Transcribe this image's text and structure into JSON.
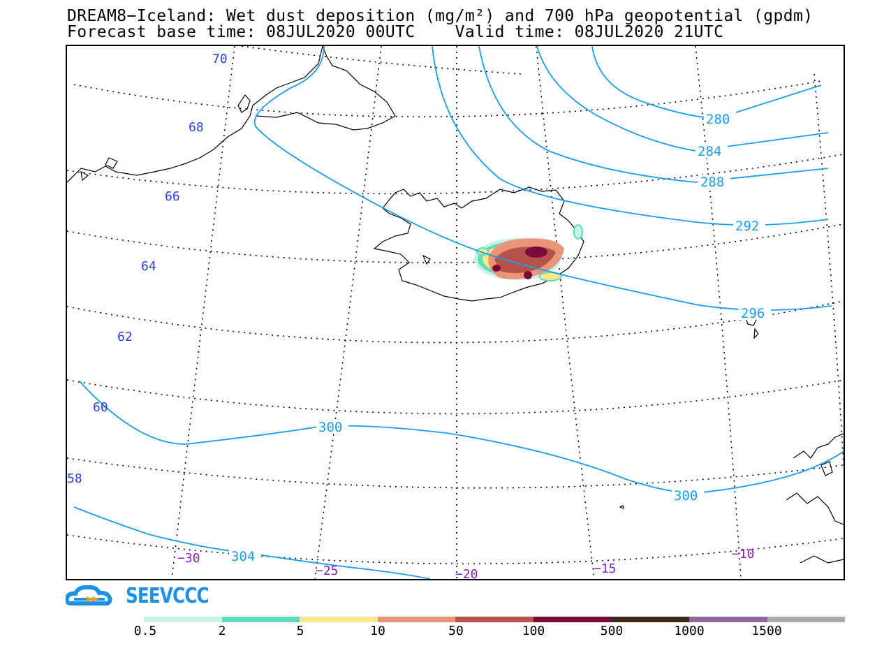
{
  "title": {
    "line1": "DREAM8−Iceland: Wet dust deposition (mg/m²) and 700 hPa geopotential (gpdm)",
    "line2": "Forecast base time: 08JUL2020 00UTC    Valid time: 08JUL2020 21UTC"
  },
  "map": {
    "latitude_labels": [
      "70",
      "68",
      "66",
      "64",
      "62",
      "60",
      "58"
    ],
    "longitude_labels": [
      "−30",
      "−25",
      "−20",
      "−15",
      "−10"
    ],
    "latitude_label_color": "#2a3fe0",
    "longitude_label_color": "#8a1ec8",
    "contour_color": "#1a9cf0",
    "geopotential_contours": [
      {
        "value": "280",
        "label": "280"
      },
      {
        "value": "284",
        "label": "284"
      },
      {
        "value": "288",
        "label": "288"
      },
      {
        "value": "292",
        "label": "292"
      },
      {
        "value": "296",
        "label": "296"
      },
      {
        "value": "300",
        "label": "300"
      },
      {
        "value": "300",
        "label": "300"
      },
      {
        "value": "304",
        "label": "304"
      }
    ],
    "dust_region": "Iceland"
  },
  "colorbar": {
    "colors": [
      "#c6f2e8",
      "#5fdcbc",
      "#f6e88a",
      "#e9957a",
      "#b5524a",
      "#7a0a36",
      "#3e2a1a",
      "#8e6a9a",
      "#ababab"
    ],
    "labels": [
      "0.5",
      "2",
      "5",
      "10",
      "50",
      "100",
      "500",
      "1000",
      "1500"
    ]
  },
  "logo": {
    "text": "SEEVCCC",
    "icon": "cloud-logo-icon",
    "color": "#1e90e6",
    "accent_color": "#f0a020"
  }
}
